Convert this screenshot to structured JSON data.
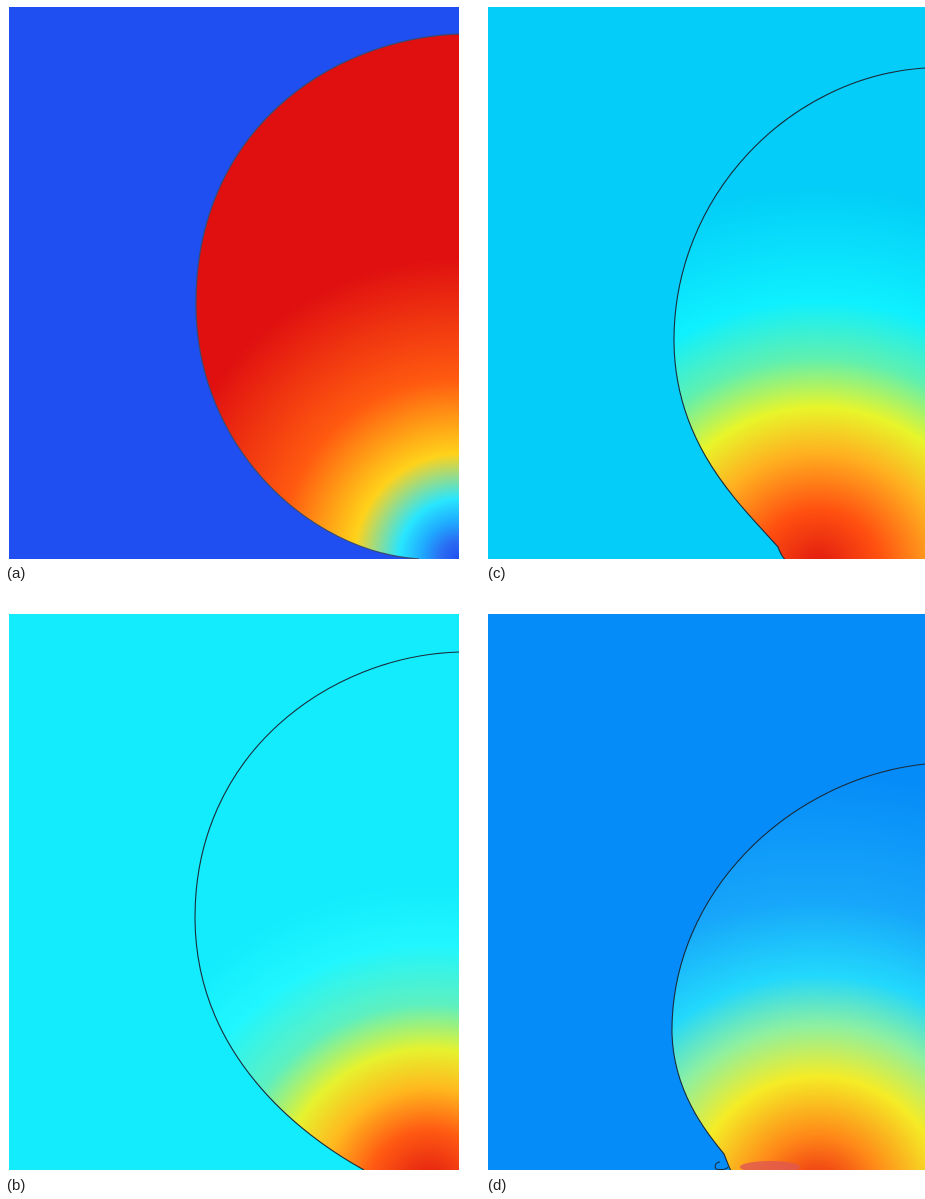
{
  "figure": {
    "panels": [
      {
        "id": "a",
        "label": "(a)",
        "background": "#1f4ff0",
        "stops": [
          "#1f4ff0",
          "#2a6cf2",
          "#1fa6ff",
          "#28e6ff",
          "#ffd21a",
          "#ff5a10",
          "#e01010"
        ]
      },
      {
        "id": "c",
        "label": "(c)",
        "background": "#03cdf8",
        "stops": [
          "#03cdf8",
          "#0ef0ff",
          "#5ff0b0",
          "#e8f52a",
          "#ffb020",
          "#ff5010",
          "#e01810"
        ]
      },
      {
        "id": "b",
        "label": "(b)",
        "background": "#12ecfc",
        "stops": [
          "#12ecfc",
          "#1ff6ff",
          "#5df0c0",
          "#e6f22e",
          "#ffb81e",
          "#ff5a12",
          "#e01810"
        ]
      },
      {
        "id": "d",
        "label": "(d)",
        "background": "#068cf8",
        "stops": [
          "#068cf8",
          "#17a6fa",
          "#22d8fc",
          "#8ef0a0",
          "#f5ec26",
          "#ff8818",
          "#e81c10"
        ]
      }
    ]
  }
}
